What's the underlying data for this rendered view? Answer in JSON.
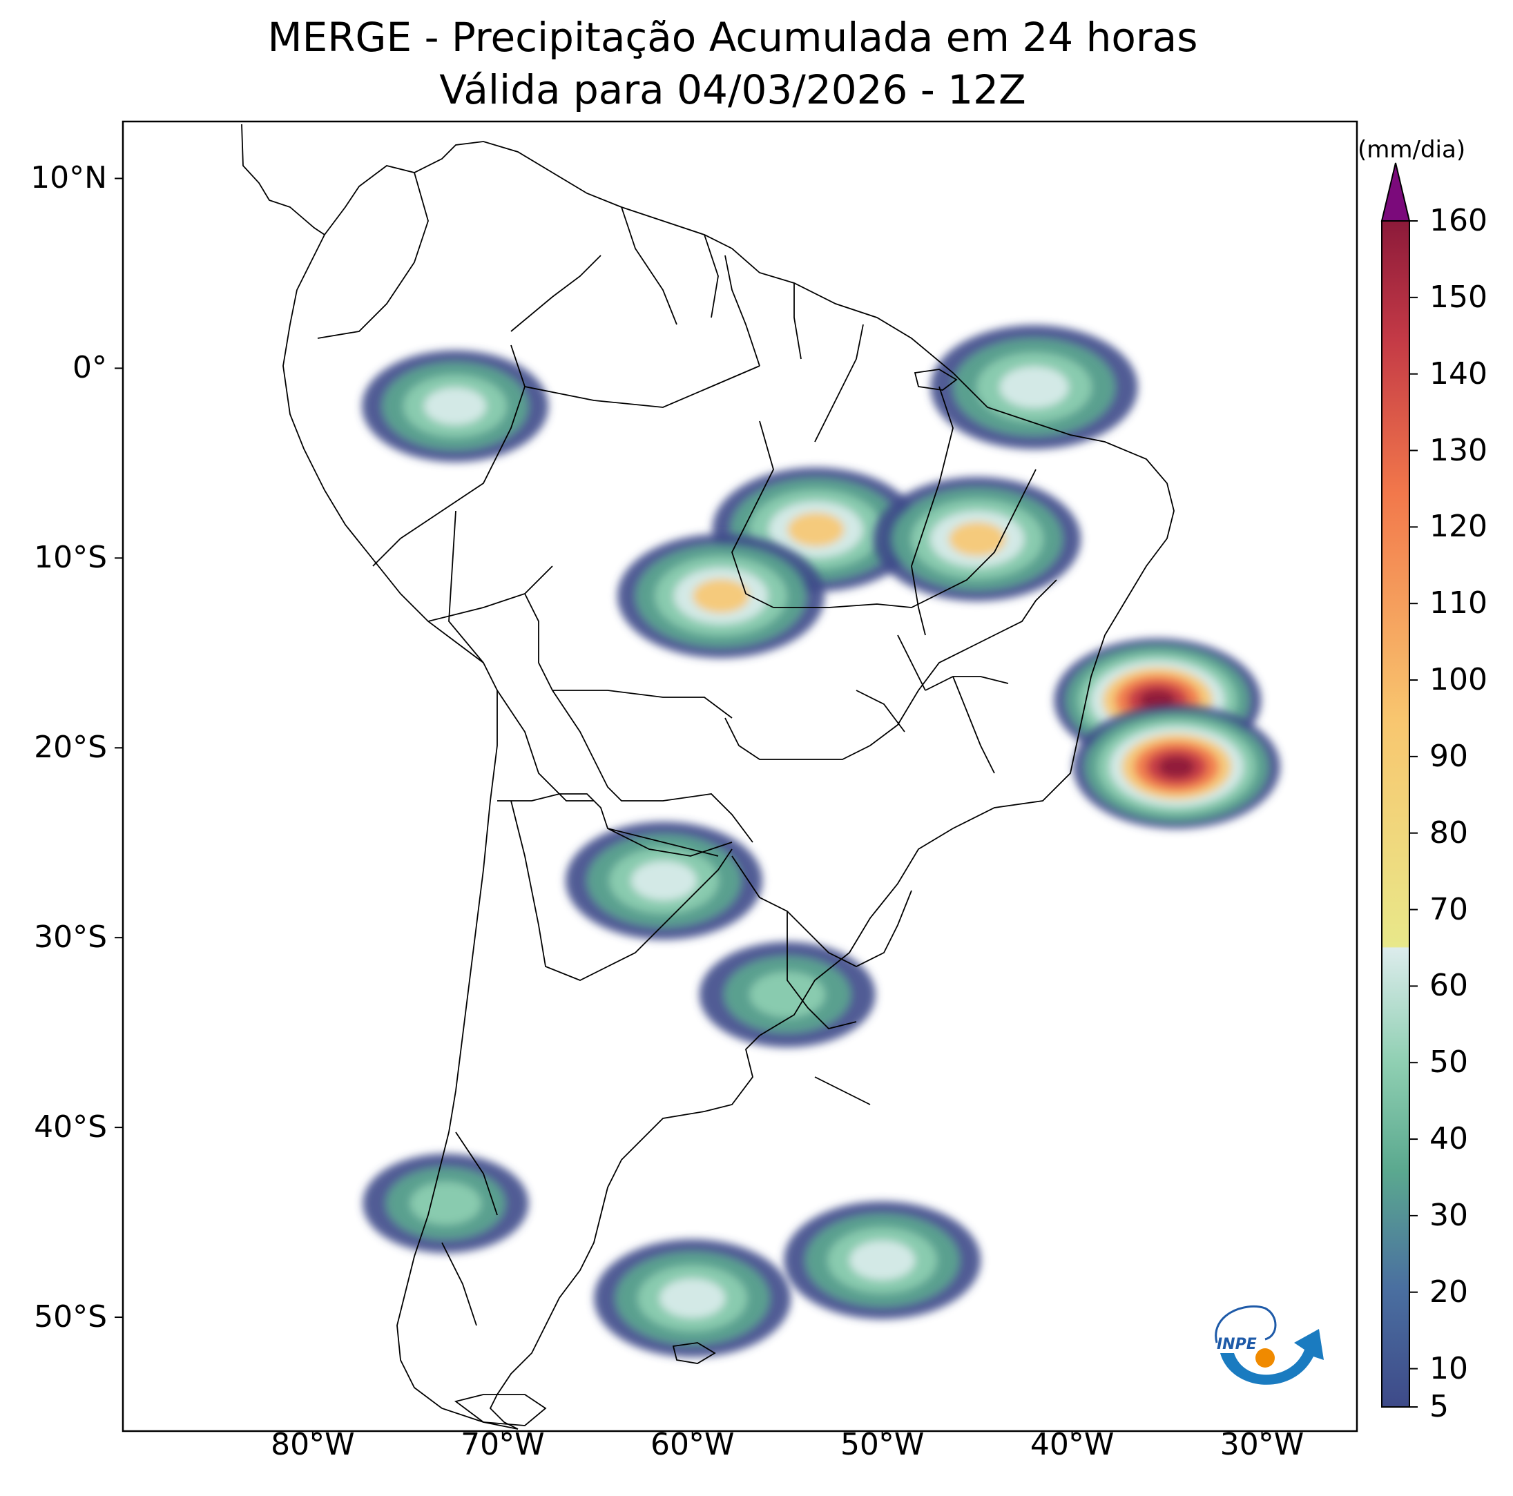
{
  "title": {
    "line1": "MERGE - Precipitação Acumulada em 24 horas",
    "line2": "Válida para 04/03/2026 - 12Z"
  },
  "map": {
    "extent": {
      "lon_min": -90,
      "lon_max": -25,
      "lat_min": -56,
      "lat_max": 13
    },
    "lat_ticks": [
      {
        "value": 10,
        "label": "10°N"
      },
      {
        "value": 0,
        "label": "0°"
      },
      {
        "value": -10,
        "label": "10°S"
      },
      {
        "value": -20,
        "label": "20°S"
      },
      {
        "value": -30,
        "label": "30°S"
      },
      {
        "value": -40,
        "label": "40°S"
      },
      {
        "value": -50,
        "label": "50°S"
      }
    ],
    "lon_ticks": [
      {
        "value": -80,
        "label": "80°W"
      },
      {
        "value": -70,
        "label": "70°W"
      },
      {
        "value": -60,
        "label": "60°W"
      },
      {
        "value": -50,
        "label": "50°W"
      },
      {
        "value": -40,
        "label": "40°W"
      },
      {
        "value": -30,
        "label": "30°W"
      }
    ],
    "precip_areas": [
      {
        "region": "equatorial Atlantic / north coast of Brazil",
        "lon": -42,
        "lat": -1,
        "max_mm": 60
      },
      {
        "region": "central Pará",
        "lon": -53.5,
        "lat": -8.5,
        "max_mm": 90
      },
      {
        "region": "southwest Pará / Mato Grosso border",
        "lon": -58.5,
        "lat": -12,
        "max_mm": 90
      },
      {
        "region": "Maranhão / Piauí / Bahia interior",
        "lon": -45,
        "lat": -9,
        "max_mm": 80
      },
      {
        "region": "ocean off Bahia",
        "lon": -35.5,
        "lat": -17.5,
        "max_mm": 160
      },
      {
        "region": "ocean off Espírito Santo",
        "lon": -34.5,
        "lat": -21,
        "max_mm": 160
      },
      {
        "region": "western Amazon / Colombia-Peru",
        "lon": -72.5,
        "lat": -2,
        "max_mm": 50
      },
      {
        "region": "northern Argentina / Chaco",
        "lon": -61.5,
        "lat": -27,
        "max_mm": 55
      },
      {
        "region": "Uruguay",
        "lon": -55,
        "lat": -33,
        "max_mm": 45
      },
      {
        "region": "southern Chile",
        "lon": -73,
        "lat": -44,
        "max_mm": 40
      },
      {
        "region": "South Atlantic band",
        "lon": -50,
        "lat": -47,
        "max_mm": 55
      },
      {
        "region": "Patagonian shelf",
        "lon": -60,
        "lat": -49,
        "max_mm": 55
      }
    ]
  },
  "colorbar": {
    "unit": "(mm/dia)",
    "min": 5,
    "max": 160,
    "extend": "max",
    "ticks": [
      5,
      10,
      20,
      30,
      40,
      50,
      60,
      70,
      80,
      90,
      100,
      110,
      120,
      130,
      140,
      150,
      160
    ],
    "colors": {
      "level_5": "#3e4a89",
      "level_20": "#4a6fa0",
      "level_35": "#5ba98f",
      "level_50": "#8fcfb2",
      "level_65": "#dcecec",
      "level_70": "#e8e88a",
      "level_100": "#f8c66f",
      "level_130": "#f2784b",
      "level_150": "#c43a46",
      "level_160": "#8c1a3a",
      "over": "#7b0a7b"
    }
  },
  "logo": {
    "text": "INPE"
  }
}
